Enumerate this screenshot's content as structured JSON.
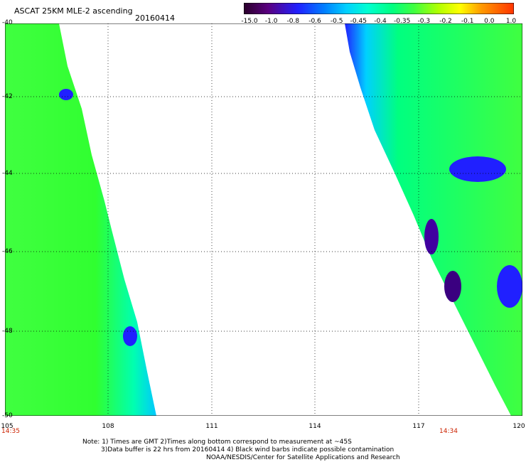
{
  "header": {
    "title": "ASCAT 25KM MLE-2 ascending",
    "date": "20160414"
  },
  "colorbar": {
    "labels": [
      "-15.0",
      "-1.0",
      "-0.8",
      "-0.6",
      "-0.5",
      "-0.45",
      "-0.4",
      "-0.35",
      "-0.3",
      "-0.2",
      "-0.1",
      "0.0",
      "1.0"
    ],
    "colors": [
      "#2a002a",
      "#5a0080",
      "#2020ff",
      "#0080ff",
      "#00d0ff",
      "#00ffd0",
      "#00ff80",
      "#40ff40",
      "#b0ff00",
      "#ffff00",
      "#ff9900",
      "#ff3300"
    ]
  },
  "map": {
    "lon_labels": [
      "105",
      "108",
      "111",
      "114",
      "117",
      "120"
    ],
    "lat_labels": [
      "-40",
      "-42",
      "-44",
      "-46",
      "-48",
      "-50"
    ],
    "time_left": "14:35",
    "time_right": "14:34"
  },
  "notes": [
    "Note: 1) Times are GMT 2)Times along bottom correspond to measurement at ~45S",
    "3)Data buffer is 22 hrs from 20160414 4) Black wind barbs indicate possible contamination",
    "NOAA/NESDIS/Center for Satellite Applications and Research"
  ]
}
